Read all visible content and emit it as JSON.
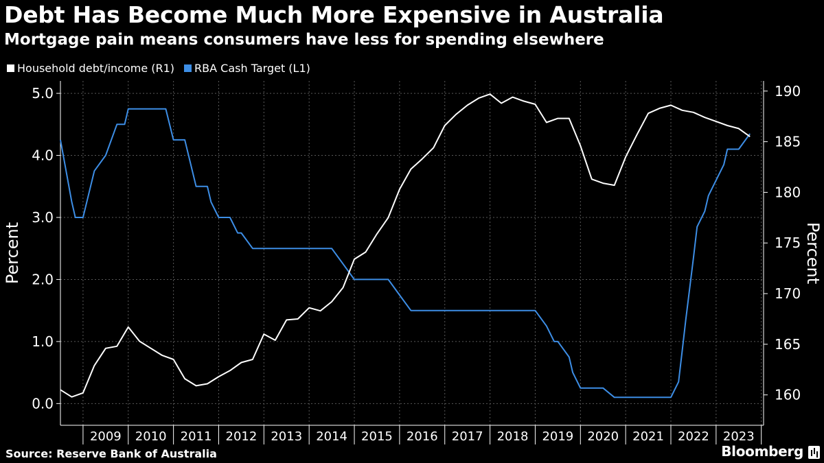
{
  "header": {
    "title": "Debt Has Become Much More Expensive in Australia",
    "subtitle": "Mortgage pain means consumers have less for spending elsewhere"
  },
  "footer": {
    "source": "Source: Reserve Bank of Australia",
    "brand": "Bloomberg"
  },
  "chart_data": {
    "type": "line",
    "title": "Debt Has Become Much More Expensive in Australia",
    "subtitle": "Mortgage pain means consumers have less for spending elsewhere",
    "x_tick_labels": [
      "2009",
      "2010",
      "2011",
      "2012",
      "2013",
      "2014",
      "2015",
      "2016",
      "2017",
      "2018",
      "2019",
      "2020",
      "2021",
      "2022",
      "2023"
    ],
    "y_left": {
      "label": "Percent",
      "lim": [
        -0.35,
        5.2
      ],
      "ticks": [
        "0.0",
        "1.0",
        "2.0",
        "3.0",
        "4.0",
        "5.0"
      ]
    },
    "y_right": {
      "label": "Percent",
      "lim": [
        157,
        191
      ],
      "ticks": [
        "160",
        "165",
        "170",
        "175",
        "180",
        "185",
        "190"
      ]
    },
    "grid": true,
    "legend_position": "top-left",
    "series": [
      {
        "name": "Household debt/income (R1)",
        "axis": "right",
        "color": "#ffffff",
        "x": [
          2008.5,
          2008.75,
          2009.0,
          2009.25,
          2009.5,
          2009.75,
          2010.0,
          2010.25,
          2010.5,
          2010.75,
          2011.0,
          2011.25,
          2011.5,
          2011.75,
          2012.0,
          2012.25,
          2012.5,
          2012.75,
          2013.0,
          2013.25,
          2013.5,
          2013.75,
          2014.0,
          2014.25,
          2014.5,
          2014.75,
          2015.0,
          2015.25,
          2015.5,
          2015.75,
          2016.0,
          2016.25,
          2016.5,
          2016.75,
          2017.0,
          2017.25,
          2017.5,
          2017.75,
          2018.0,
          2018.25,
          2018.5,
          2018.75,
          2019.0,
          2019.25,
          2019.5,
          2019.75,
          2020.0,
          2020.25,
          2020.5,
          2020.75,
          2021.0,
          2021.25,
          2021.5,
          2021.75,
          2022.0,
          2022.25,
          2022.5,
          2022.75,
          2023.0,
          2023.25,
          2023.5,
          2023.75
        ],
        "values": [
          160.5,
          159.8,
          160.2,
          162.9,
          164.6,
          164.8,
          166.7,
          165.3,
          164.6,
          163.9,
          163.5,
          161.6,
          160.9,
          161.1,
          161.8,
          162.4,
          163.2,
          163.5,
          166.0,
          165.4,
          167.4,
          167.5,
          168.6,
          168.3,
          169.2,
          170.6,
          173.4,
          174.1,
          175.9,
          177.5,
          180.3,
          182.3,
          183.3,
          184.4,
          186.6,
          187.7,
          188.6,
          189.3,
          189.7,
          188.8,
          189.4,
          189.0,
          188.7,
          186.9,
          187.3,
          187.3,
          184.6,
          181.3,
          180.9,
          180.7,
          183.5,
          185.7,
          187.8,
          188.3,
          188.6,
          188.1,
          187.9,
          187.4,
          187.0,
          186.6,
          186.3,
          185.5
        ]
      },
      {
        "name": "RBA Cash Target (L1)",
        "axis": "left",
        "color": "#3d8ee6",
        "x": [
          2008.5,
          2008.75,
          2008.83,
          2009.0,
          2009.25,
          2009.5,
          2009.75,
          2009.92,
          2010.0,
          2010.25,
          2010.33,
          2010.5,
          2010.75,
          2010.83,
          2011.0,
          2011.25,
          2011.5,
          2011.75,
          2011.83,
          2012.0,
          2012.25,
          2012.42,
          2012.5,
          2012.75,
          2012.92,
          2013.0,
          2013.25,
          2013.5,
          2013.75,
          2014.0,
          2014.25,
          2014.5,
          2014.75,
          2015.0,
          2015.25,
          2015.42,
          2015.5,
          2015.75,
          2016.0,
          2016.25,
          2016.42,
          2016.5,
          2016.75,
          2017.0,
          2017.25,
          2017.5,
          2017.75,
          2018.0,
          2018.25,
          2018.5,
          2018.75,
          2019.0,
          2019.25,
          2019.42,
          2019.5,
          2019.75,
          2019.83,
          2020.0,
          2020.17,
          2020.25,
          2020.5,
          2020.75,
          2020.83,
          2021.0,
          2021.25,
          2021.5,
          2021.75,
          2022.0,
          2022.17,
          2022.25,
          2022.33,
          2022.5,
          2022.58,
          2022.75,
          2022.83,
          2023.0,
          2023.17,
          2023.25,
          2023.42,
          2023.5,
          2023.75
        ],
        "values": [
          4.25,
          3.25,
          3.0,
          3.0,
          3.75,
          4.0,
          4.5,
          4.5,
          4.75,
          4.75,
          4.75,
          4.75,
          4.75,
          4.75,
          4.25,
          4.25,
          3.5,
          3.5,
          3.25,
          3.0,
          3.0,
          2.75,
          2.75,
          2.5,
          2.5,
          2.5,
          2.5,
          2.5,
          2.5,
          2.5,
          2.5,
          2.5,
          2.25,
          2.0,
          2.0,
          2.0,
          2.0,
          2.0,
          1.75,
          1.5,
          1.5,
          1.5,
          1.5,
          1.5,
          1.5,
          1.5,
          1.5,
          1.5,
          1.5,
          1.5,
          1.5,
          1.5,
          1.25,
          1.0,
          1.0,
          0.75,
          0.5,
          0.25,
          0.25,
          0.25,
          0.25,
          0.1,
          0.1,
          0.1,
          0.1,
          0.1,
          0.1,
          0.1,
          0.35,
          0.85,
          1.35,
          2.35,
          2.85,
          3.1,
          3.35,
          3.6,
          3.85,
          4.1,
          4.1,
          4.1,
          4.35
        ]
      }
    ]
  }
}
